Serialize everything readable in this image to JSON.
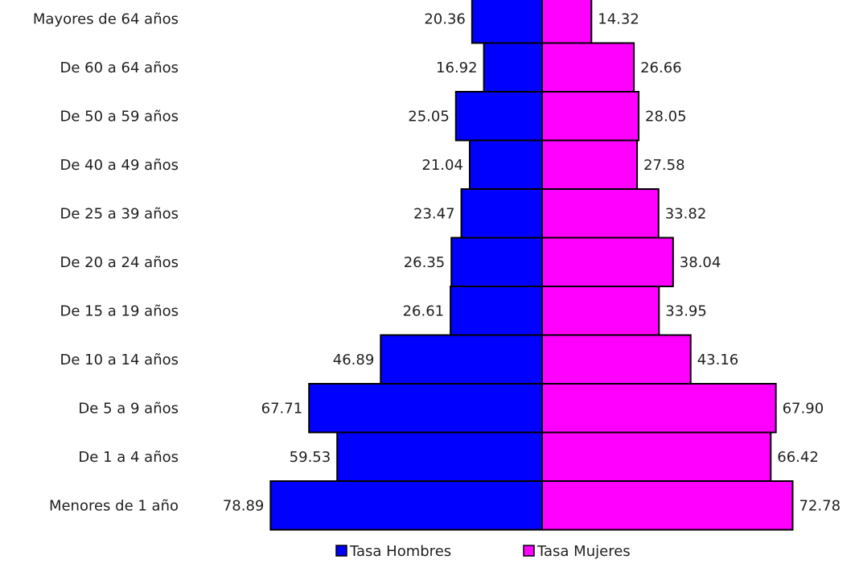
{
  "chart_data": {
    "type": "bar",
    "orientation": "horizontal",
    "layout": "population-pyramid",
    "categories": [
      "Mayores de 64 años",
      "De 60 a 64 años",
      "De 50 a 59 años",
      "De 40 a 49 años",
      "De 25 a 39 años",
      "De 20 a 24 años",
      "De 15 a 19 años",
      "De 10 a 14 años",
      "De 5 a 9 años",
      "De 1 a 4 años",
      "Menores de 1 año"
    ],
    "series": [
      {
        "name": "Tasa Hombres",
        "side": "left",
        "color": "#0000ff",
        "values": [
          20.36,
          16.92,
          25.05,
          21.04,
          23.47,
          26.35,
          26.61,
          46.89,
          67.71,
          59.53,
          78.89
        ],
        "labels": [
          "20.36",
          "16.92",
          "25.05",
          "21.04",
          "23.47",
          "26.35",
          "26.61",
          "46.89",
          "67.71",
          "59.53",
          "78.89"
        ]
      },
      {
        "name": "Tasa Mujeres",
        "side": "right",
        "color": "#ff00ff",
        "values": [
          14.32,
          26.66,
          28.05,
          27.58,
          33.82,
          38.04,
          33.95,
          43.16,
          67.9,
          66.42,
          72.78
        ],
        "labels": [
          "14.32",
          "26.66",
          "28.05",
          "27.58",
          "33.82",
          "38.04",
          "33.95",
          "43.16",
          "67.90",
          "66.42",
          "72.78"
        ]
      }
    ],
    "title": "",
    "xlabel": "",
    "ylabel": "",
    "grid": false,
    "legend": "bottom",
    "border_color": "#000000"
  }
}
